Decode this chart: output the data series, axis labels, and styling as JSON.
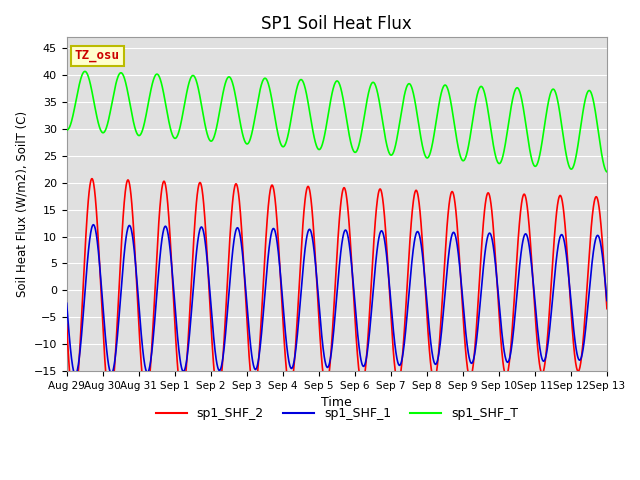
{
  "title": "SP1 Soil Heat Flux",
  "xlabel": "Time",
  "ylabel": "Soil Heat Flux (W/m2), SoilT (C)",
  "ylim": [
    -15,
    47
  ],
  "yticks": [
    -15,
    -10,
    -5,
    0,
    5,
    10,
    15,
    20,
    25,
    30,
    35,
    40,
    45
  ],
  "xtick_labels": [
    "Aug 29",
    "Aug 30",
    "Aug 31",
    "Sep 1",
    "Sep 2",
    "Sep 3",
    "Sep 4",
    "Sep 5",
    "Sep 6",
    "Sep 7",
    "Sep 8",
    "Sep 9",
    "Sep 10",
    "Sep 11",
    "Sep 12",
    "Sep 13"
  ],
  "color_red": "#ff0000",
  "color_blue": "#0000dd",
  "color_green": "#00ff00",
  "bg_color": "#e0e0e0",
  "legend_entries": [
    "sp1_SHF_2",
    "sp1_SHF_1",
    "sp1_SHF_T"
  ],
  "annotation_text": "TZ_osu",
  "annotation_bg": "#ffffcc",
  "annotation_border": "#bbbb00",
  "annotation_text_color": "#cc0000",
  "num_days": 15,
  "n_points": 2000
}
